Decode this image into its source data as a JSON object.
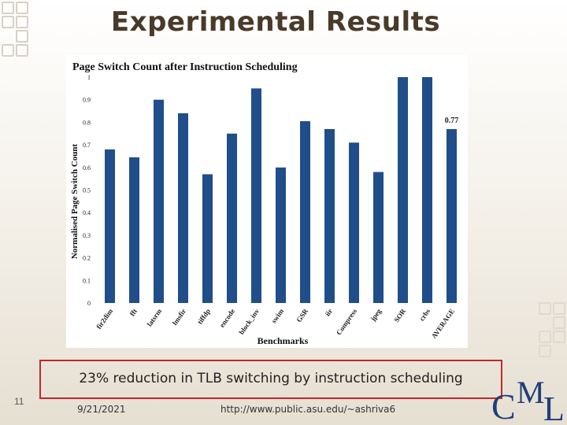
{
  "slide": {
    "title": "Experimental Results",
    "caption": "23% reduction in TLB switching by instruction scheduling",
    "page_number": "11",
    "date": "9/21/2021",
    "url": "http://www.public.asu.edu/~ashriva6",
    "logo_text": "CML",
    "colors": {
      "title": "#4a3a2a",
      "caption_border": "#c0282d",
      "logo": "#1f3f7a"
    }
  },
  "chart_data": {
    "type": "bar",
    "title": "Page Switch Count after Instruction Scheduling",
    "xlabel": "Benchmarks",
    "ylabel": "Normalised Page Switch Count",
    "ylim": [
      0,
      1
    ],
    "yticks": [
      "0",
      "0.1",
      "0.2",
      "0.3",
      "0.4",
      "0.5",
      "0.6",
      "0.7",
      "0.8",
      "0.9",
      "1"
    ],
    "categories": [
      "fir2dim",
      "fft",
      "latsrm",
      "lmsfir",
      "tiffdp",
      "encode",
      "block_inv",
      "swim",
      "GSR",
      "iir",
      "Compress",
      "jpeg",
      "SOR",
      "crbs",
      "AVERAGE"
    ],
    "values": [
      0.68,
      0.645,
      0.9,
      0.84,
      0.57,
      0.75,
      0.95,
      0.6,
      0.805,
      0.77,
      0.71,
      0.58,
      1.0,
      1.0,
      0.77
    ],
    "data_labels": [
      {
        "category": "AVERAGE",
        "text": "0.77"
      }
    ],
    "bar_color": "#1f4e8a",
    "grid": false,
    "legend": "none"
  }
}
